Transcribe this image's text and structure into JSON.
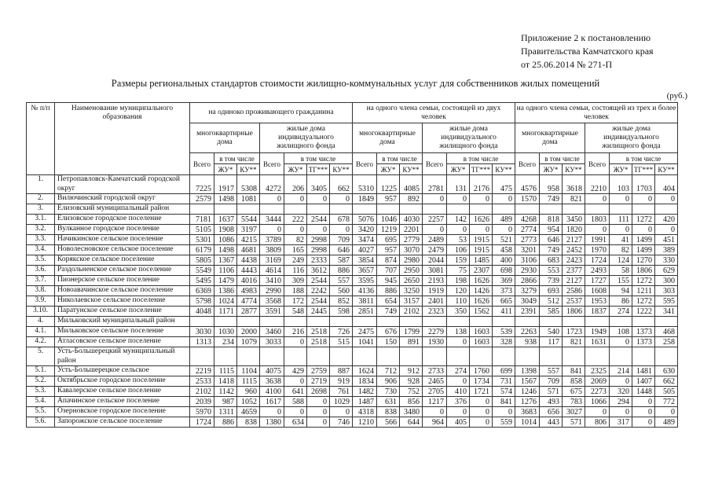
{
  "meta": {
    "appendix_lines": "Приложение 2 к постановлению\nПравительства Камчатского края\nот 25.06.2014 № 271-П",
    "title": "Размеры региональных стандартов стоимости жилищно-коммунальных услуг для собственников жилых помещений",
    "currency_note": "(руб.)"
  },
  "table": {
    "header": {
      "num_col": "№ п/п",
      "name_col": "Наименование муниципального образования",
      "groups": [
        {
          "label": "на одиноко проживающего гражданина"
        },
        {
          "label": "на одного члена семьи, состоящей из двух человек"
        },
        {
          "label": "на одного члена семьи, состоящей из трех и более человек"
        }
      ],
      "subgroup_mkd": "многоквартирные дома",
      "subgroup_ind": "жилые дома индивидуального жилищного фонда",
      "total_label": "Всего",
      "including_label": "в том числе",
      "mkd_cols": [
        "ЖУ*",
        "КУ**"
      ],
      "ind_cols": [
        "ЖУ*",
        "ТГ***",
        "КУ**"
      ]
    },
    "rows": [
      {
        "num": "1.",
        "name": "Петропавловск-Камчатский городской округ",
        "values": [
          7225,
          1917,
          5308,
          4272,
          206,
          3405,
          662,
          5310,
          1225,
          4085,
          2781,
          131,
          2176,
          475,
          4576,
          958,
          3618,
          2210,
          103,
          1703,
          404
        ]
      },
      {
        "num": "2.",
        "name": "Вилючинский городской округ",
        "values": [
          2579,
          1498,
          1081,
          0,
          0,
          0,
          0,
          1849,
          957,
          892,
          0,
          0,
          0,
          0,
          1570,
          749,
          821,
          0,
          0,
          0,
          0
        ]
      },
      {
        "num": "3.",
        "name": "Елизовский муниципальный район",
        "values": []
      },
      {
        "num": "3.1.",
        "name": "Елизовское городское поселение",
        "values": [
          7181,
          1637,
          5544,
          3444,
          222,
          2544,
          678,
          5076,
          1046,
          4030,
          2257,
          142,
          1626,
          489,
          4268,
          818,
          3450,
          1803,
          111,
          1272,
          420
        ]
      },
      {
        "num": "3.2.",
        "name": "Вулканное городское поселение",
        "values": [
          5105,
          1908,
          3197,
          0,
          0,
          0,
          0,
          3420,
          1219,
          2201,
          0,
          0,
          0,
          0,
          2774,
          954,
          1820,
          0,
          0,
          0,
          0
        ]
      },
      {
        "num": "3.3.",
        "name": "Начикинское сельское поселение",
        "values": [
          5301,
          1086,
          4215,
          3789,
          82,
          2998,
          709,
          3474,
          695,
          2779,
          2489,
          53,
          1915,
          521,
          2773,
          646,
          2127,
          1991,
          41,
          1499,
          451
        ]
      },
      {
        "num": "3.4.",
        "name": "Новолесновское сельское поселение",
        "values": [
          6179,
          1498,
          4681,
          3809,
          165,
          2998,
          646,
          4027,
          957,
          3070,
          2479,
          106,
          1915,
          458,
          3201,
          749,
          2452,
          1970,
          82,
          1499,
          389
        ]
      },
      {
        "num": "3.5.",
        "name": "Корякское сельское поселение",
        "values": [
          5805,
          1367,
          4438,
          3169,
          249,
          2333,
          587,
          3854,
          874,
          2980,
          2044,
          159,
          1485,
          400,
          3106,
          683,
          2423,
          1724,
          124,
          1270,
          330
        ]
      },
      {
        "num": "3.6.",
        "name": "Раздольненское сельское поселение",
        "values": [
          5549,
          1106,
          4443,
          4614,
          116,
          3612,
          886,
          3657,
          707,
          2950,
          3081,
          75,
          2307,
          698,
          2930,
          553,
          2377,
          2493,
          58,
          1806,
          629
        ]
      },
      {
        "num": "3.7.",
        "name": "Пионерское сельское поселение",
        "values": [
          5495,
          1479,
          4016,
          3410,
          309,
          2544,
          557,
          3595,
          945,
          2650,
          2193,
          198,
          1626,
          369,
          2866,
          739,
          2127,
          1727,
          155,
          1272,
          300
        ]
      },
      {
        "num": "3.8.",
        "name": "Новоавачинское сельское поселение",
        "values": [
          6369,
          1386,
          4983,
          2990,
          188,
          2242,
          560,
          4136,
          886,
          3250,
          1919,
          120,
          1426,
          373,
          3279,
          693,
          2586,
          1608,
          94,
          1211,
          303
        ]
      },
      {
        "num": "3.9.",
        "name": "Николаевское сельское поселение",
        "values": [
          5798,
          1024,
          4774,
          3568,
          172,
          2544,
          852,
          3811,
          654,
          3157,
          2401,
          110,
          1626,
          665,
          3049,
          512,
          2537,
          1953,
          86,
          1272,
          595
        ]
      },
      {
        "num": "3.10.",
        "name": "Паратунское сельское поселение",
        "values": [
          4048,
          1171,
          2877,
          3591,
          548,
          2445,
          598,
          2851,
          749,
          2102,
          2323,
          350,
          1562,
          411,
          2391,
          585,
          1806,
          1837,
          274,
          1222,
          341
        ]
      },
      {
        "num": "4.",
        "name": "Мильковский муниципальный район",
        "values": []
      },
      {
        "num": "4.1.",
        "name": "Мильковское сельское поселение",
        "values": [
          3030,
          1030,
          2000,
          3460,
          216,
          2518,
          726,
          2475,
          676,
          1799,
          2279,
          138,
          1603,
          539,
          2263,
          540,
          1723,
          1949,
          108,
          1373,
          468
        ]
      },
      {
        "num": "4.2.",
        "name": "Атласовское сельское поселение",
        "values": [
          1313,
          234,
          1079,
          3033,
          0,
          2518,
          515,
          1041,
          150,
          891,
          1930,
          0,
          1603,
          328,
          938,
          117,
          821,
          1631,
          0,
          1373,
          258
        ]
      },
      {
        "num": "5.",
        "name": "Усть-Большерецкий муниципальный район",
        "values": []
      },
      {
        "num": "5.1.",
        "name": "Усть-Большерецкое сельское",
        "values": [
          2219,
          1115,
          1104,
          4075,
          429,
          2759,
          887,
          1624,
          712,
          912,
          2733,
          274,
          1760,
          699,
          1398,
          557,
          841,
          2325,
          214,
          1481,
          630
        ]
      },
      {
        "num": "5.2.",
        "name": "Октябрьское городское поселение",
        "values": [
          2533,
          1418,
          1115,
          3638,
          0,
          2719,
          919,
          1834,
          906,
          928,
          2465,
          0,
          1734,
          731,
          1567,
          709,
          858,
          2069,
          0,
          1407,
          662
        ]
      },
      {
        "num": "5.3.",
        "name": "Кавалерское сельское поселение",
        "values": [
          2102,
          1142,
          960,
          4100,
          641,
          2698,
          761,
          1482,
          730,
          752,
          2705,
          410,
          1721,
          574,
          1246,
          571,
          675,
          2273,
          320,
          1448,
          505
        ]
      },
      {
        "num": "5.4.",
        "name": "Апачинское сельское поселение",
        "values": [
          2039,
          987,
          1052,
          1617,
          588,
          0,
          1029,
          1487,
          631,
          856,
          1217,
          376,
          0,
          841,
          1276,
          493,
          783,
          1066,
          294,
          0,
          772
        ]
      },
      {
        "num": "5.5.",
        "name": "Озерновское городское поселение",
        "values": [
          5970,
          1311,
          4659,
          0,
          0,
          0,
          0,
          4318,
          838,
          3480,
          0,
          0,
          0,
          0,
          3683,
          656,
          3027,
          0,
          0,
          0,
          0
        ]
      },
      {
        "num": "5.6.",
        "name": "Запорожское сельское поселение",
        "values": [
          1724,
          886,
          838,
          1380,
          634,
          0,
          746,
          1210,
          566,
          644,
          964,
          405,
          0,
          559,
          1014,
          443,
          571,
          806,
          317,
          0,
          489
        ]
      }
    ]
  }
}
